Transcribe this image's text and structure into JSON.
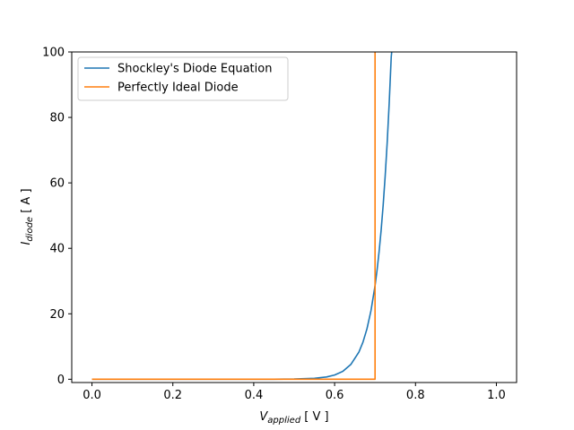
{
  "chart_data": {
    "type": "line",
    "xlabel": {
      "main": "V",
      "sub": "applied",
      "unit": " [ V ]"
    },
    "ylabel": {
      "main": "I",
      "sub": "diode",
      "unit": " [ A ]"
    },
    "xlim": [
      -0.05,
      1.05
    ],
    "ylim": [
      -1,
      100
    ],
    "xticks": [
      {
        "v": 0.0,
        "label": "0.0"
      },
      {
        "v": 0.2,
        "label": "0.2"
      },
      {
        "v": 0.4,
        "label": "0.4"
      },
      {
        "v": 0.6,
        "label": "0.6"
      },
      {
        "v": 0.8,
        "label": "0.8"
      },
      {
        "v": 1.0,
        "label": "1.0"
      }
    ],
    "yticks": [
      {
        "v": 0,
        "label": "0"
      },
      {
        "v": 20,
        "label": "20"
      },
      {
        "v": 40,
        "label": "40"
      },
      {
        "v": 60,
        "label": "60"
      },
      {
        "v": 80,
        "label": "80"
      },
      {
        "v": 100,
        "label": "100"
      }
    ],
    "grid": false,
    "legend_position": "top-left",
    "series": [
      {
        "name": "Shockley's Diode Equation",
        "color": "#1f77b4",
        "points": [
          [
            0.0,
            0.0
          ],
          [
            0.3,
            0.0
          ],
          [
            0.45,
            0.02
          ],
          [
            0.5,
            0.08
          ],
          [
            0.55,
            0.3
          ],
          [
            0.58,
            0.7
          ],
          [
            0.6,
            1.3
          ],
          [
            0.62,
            2.4
          ],
          [
            0.64,
            4.5
          ],
          [
            0.66,
            8.3
          ],
          [
            0.67,
            11.3
          ],
          [
            0.68,
            15.4
          ],
          [
            0.69,
            21.0
          ],
          [
            0.7,
            28.6
          ],
          [
            0.705,
            33.4
          ],
          [
            0.71,
            39.0
          ],
          [
            0.715,
            45.5
          ],
          [
            0.72,
            53.1
          ],
          [
            0.725,
            62.0
          ],
          [
            0.73,
            72.3
          ],
          [
            0.735,
            84.4
          ],
          [
            0.74,
            98.5
          ],
          [
            0.7412,
            100
          ]
        ]
      },
      {
        "name": "Perfectly Ideal Diode",
        "color": "#ff7f0e",
        "points": [
          [
            0.0,
            0.0
          ],
          [
            0.7,
            0.0
          ],
          [
            0.7,
            100
          ]
        ]
      }
    ]
  }
}
